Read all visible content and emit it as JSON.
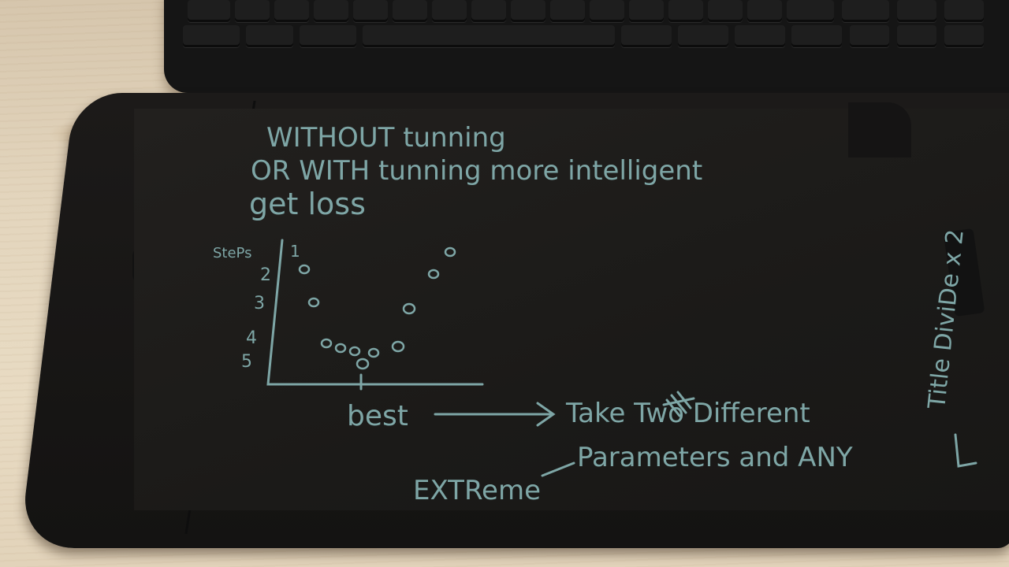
{
  "notes": {
    "line1": "WITHOUT tunning",
    "line2": "OR WITH tunning more intelligent",
    "line3": "get loss",
    "y_axis_label": "StePs",
    "y_ticks": [
      "1",
      "2",
      "3",
      "4",
      "5"
    ],
    "x_marker": "best",
    "action_line1": "Take Two Different",
    "action_line2": "Parameters and ANY",
    "extreme": "EXTReme",
    "side_note": "Title DiviDe x 2"
  },
  "colors": {
    "ink": "#7ea6a6",
    "screen": "#1c1b19",
    "tablet_frame": "#161514",
    "desk": "#e3d5bd"
  },
  "icons": {
    "home": "home-button-icon",
    "arrow": "arrow-right-icon",
    "scribble": "scribble-icon"
  }
}
